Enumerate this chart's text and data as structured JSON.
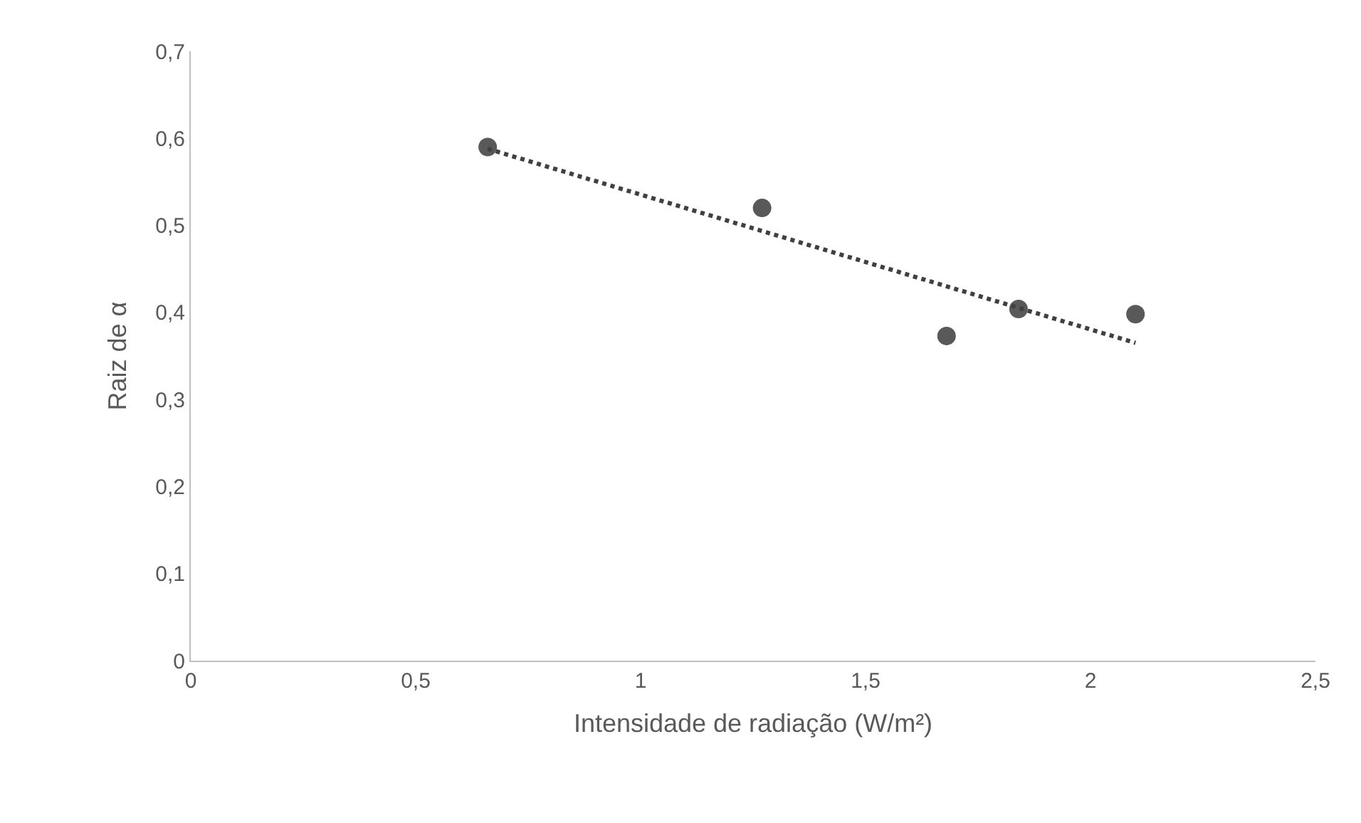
{
  "chart_data": {
    "type": "scatter",
    "xlabel": "Intensidade de radiação (W/m²)",
    "ylabel": "Raiz de α",
    "xlim": [
      0,
      2.5
    ],
    "xticks": [
      {
        "value": 0,
        "label": "0"
      },
      {
        "value": 0.5,
        "label": "0,5"
      },
      {
        "value": 1,
        "label": "1"
      },
      {
        "value": 1.5,
        "label": "1,5"
      },
      {
        "value": 2,
        "label": "2"
      },
      {
        "value": 2.5,
        "label": "2,5"
      }
    ],
    "ylim": [
      0,
      0.7
    ],
    "yticks": [
      {
        "value": 0,
        "label": "0"
      },
      {
        "value": 0.1,
        "label": "0,1"
      },
      {
        "value": 0.2,
        "label": "0,2"
      },
      {
        "value": 0.3,
        "label": "0,3"
      },
      {
        "value": 0.4,
        "label": "0,4"
      },
      {
        "value": 0.5,
        "label": "0,5"
      },
      {
        "value": 0.6,
        "label": "0,6"
      },
      {
        "value": 0.7,
        "label": "0,7"
      }
    ],
    "series": [
      {
        "type": "scatter",
        "color": "#595959",
        "marker": "circle",
        "x": [
          0.66,
          1.27,
          1.68,
          1.84,
          2.1
        ],
        "values": [
          0.59,
          0.52,
          0.373,
          0.404,
          0.398
        ]
      },
      {
        "type": "line",
        "color": "#404040",
        "line_style": "dotted",
        "marker": "none",
        "x": [
          0.66,
          2.1
        ],
        "values": [
          0.588,
          0.365
        ]
      }
    ]
  }
}
